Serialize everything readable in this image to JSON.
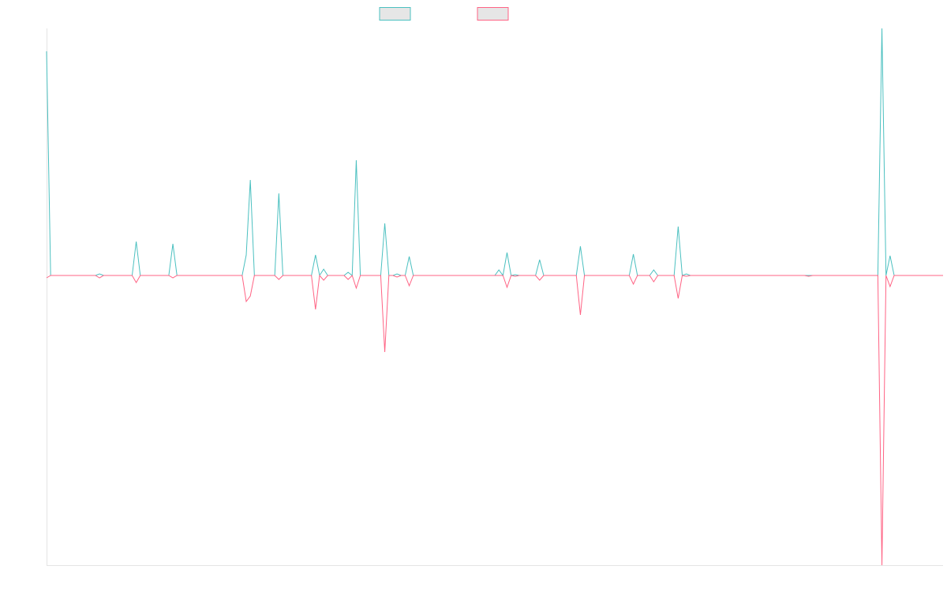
{
  "chart_data": {
    "type": "line",
    "ylim": [
      -367,
      313
    ],
    "series": [
      {
        "color": "#4bc0c0",
        "values": [
          284,
          0,
          0,
          0,
          0,
          0,
          0,
          0,
          0,
          0,
          0,
          0,
          0,
          2,
          0,
          0,
          0,
          0,
          0,
          0,
          0,
          0,
          43,
          0,
          0,
          0,
          0,
          0,
          0,
          0,
          0,
          40,
          0,
          0,
          0,
          0,
          0,
          0,
          0,
          0,
          0,
          0,
          0,
          0,
          0,
          0,
          0,
          0,
          0,
          26,
          121,
          0,
          0,
          0,
          0,
          0,
          0,
          104,
          0,
          0,
          0,
          0,
          0,
          0,
          0,
          0,
          26,
          0,
          8,
          0,
          0,
          0,
          0,
          0,
          4,
          0,
          146,
          0,
          0,
          0,
          0,
          0,
          0,
          66,
          0,
          0,
          2,
          0,
          0,
          24,
          0,
          0,
          0,
          0,
          0,
          0,
          0,
          0,
          0,
          0,
          0,
          0,
          0,
          0,
          0,
          0,
          0,
          0,
          0,
          0,
          0,
          7,
          0,
          29,
          0,
          1,
          0,
          0,
          0,
          0,
          0,
          20,
          0,
          0,
          0,
          0,
          0,
          0,
          0,
          0,
          0,
          37,
          0,
          0,
          0,
          0,
          0,
          0,
          0,
          0,
          0,
          0,
          0,
          0,
          27,
          0,
          0,
          0,
          0,
          7,
          0,
          0,
          0,
          0,
          0,
          62,
          0,
          2,
          0,
          0,
          0,
          0,
          0,
          0,
          0,
          0,
          0,
          0,
          0,
          0,
          0,
          0,
          0,
          0,
          0,
          0,
          0,
          0,
          0,
          0,
          0,
          0,
          0,
          0,
          0,
          0,
          0,
          0,
          0,
          0,
          0,
          0,
          0,
          0,
          0,
          0,
          0,
          0,
          0,
          0,
          0,
          0,
          0,
          0,
          0,
          313,
          0,
          25,
          0,
          0,
          0,
          0,
          0,
          0,
          0,
          0,
          0,
          0,
          0,
          0,
          0
        ]
      },
      {
        "color": "#ff6384",
        "values": [
          -3,
          0,
          0,
          0,
          0,
          0,
          0,
          0,
          0,
          0,
          0,
          0,
          0,
          -3,
          0,
          0,
          0,
          0,
          0,
          0,
          0,
          0,
          -9,
          0,
          0,
          0,
          0,
          0,
          0,
          0,
          0,
          -3,
          0,
          0,
          0,
          0,
          0,
          0,
          0,
          0,
          0,
          0,
          0,
          0,
          0,
          0,
          0,
          0,
          0,
          -33,
          -26,
          0,
          0,
          0,
          0,
          0,
          0,
          -5,
          0,
          0,
          0,
          0,
          0,
          0,
          0,
          0,
          -43,
          0,
          -6,
          0,
          0,
          0,
          0,
          0,
          -5,
          0,
          -16,
          0,
          0,
          0,
          0,
          0,
          0,
          -97,
          0,
          0,
          -2,
          0,
          0,
          -13,
          0,
          0,
          0,
          0,
          0,
          0,
          0,
          0,
          0,
          0,
          0,
          0,
          0,
          0,
          0,
          0,
          0,
          0,
          0,
          0,
          0,
          0,
          0,
          -15,
          0,
          -1,
          0,
          0,
          0,
          0,
          0,
          -6,
          0,
          0,
          0,
          0,
          0,
          0,
          0,
          0,
          0,
          -50,
          0,
          0,
          0,
          0,
          0,
          0,
          0,
          0,
          0,
          0,
          0,
          0,
          -11,
          0,
          0,
          0,
          0,
          -8,
          0,
          0,
          0,
          0,
          0,
          -29,
          0,
          -1,
          0,
          0,
          0,
          0,
          0,
          0,
          0,
          0,
          0,
          0,
          0,
          0,
          0,
          0,
          0,
          0,
          0,
          0,
          0,
          0,
          0,
          0,
          0,
          0,
          0,
          0,
          0,
          0,
          0,
          -1,
          0,
          0,
          0,
          0,
          0,
          0,
          0,
          0,
          0,
          0,
          0,
          0,
          0,
          0,
          0,
          0,
          0,
          -367,
          0,
          -14,
          0,
          0,
          0,
          0,
          0,
          0,
          0,
          0,
          0,
          0,
          0,
          0,
          0
        ]
      }
    ]
  }
}
